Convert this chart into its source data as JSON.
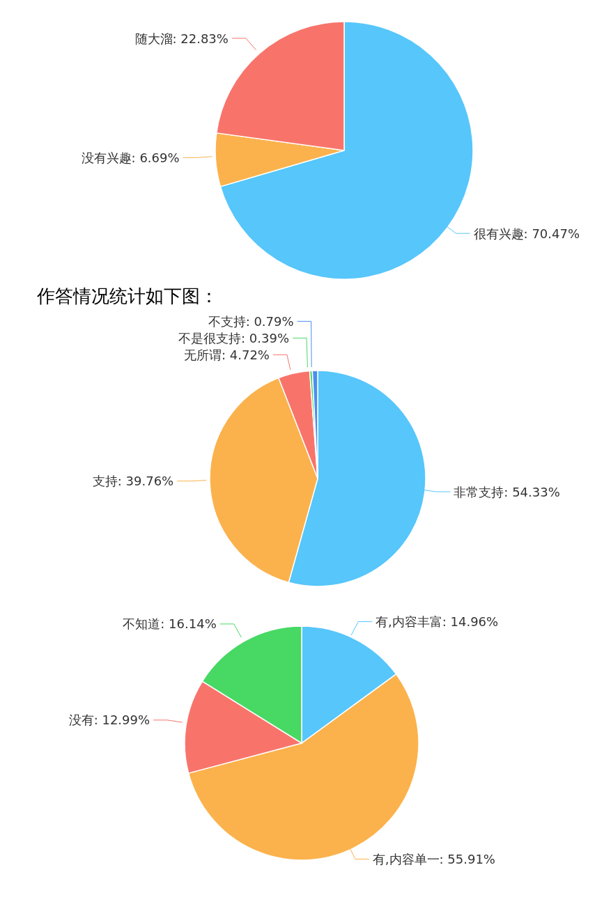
{
  "chart_data": [
    {
      "type": "pie",
      "categories": [
        "很有兴趣",
        "没有兴趣",
        "随大溜"
      ],
      "values": [
        70.47,
        6.69,
        22.83
      ],
      "colors": [
        "#56c6fb",
        "#fbb24c",
        "#f8746b"
      ],
      "value_labels": [
        "70.47%",
        "6.69%",
        "22.83%"
      ]
    },
    {
      "type": "pie",
      "title": "作答情况统计如下图：",
      "categories": [
        "非常支持",
        "支持",
        "无所谓",
        "不是很支持",
        "不支持"
      ],
      "values": [
        54.33,
        39.76,
        4.72,
        0.39,
        0.79
      ],
      "colors": [
        "#56c6fb",
        "#fbb24c",
        "#f8746b",
        "#48d864",
        "#4a8ff0"
      ],
      "value_labels": [
        "54.33%",
        "39.76%",
        "4.72%",
        "0.39%",
        "0.79%"
      ]
    },
    {
      "type": "pie",
      "categories": [
        "有,内容丰富",
        "有,内容单一",
        "没有",
        "不知道"
      ],
      "values": [
        14.96,
        55.91,
        12.99,
        16.14
      ],
      "colors": [
        "#56c6fb",
        "#fbb24c",
        "#f8746b",
        "#48d864"
      ],
      "value_labels": [
        "14.96%",
        "55.91%",
        "12.99%",
        "16.14%"
      ]
    }
  ]
}
